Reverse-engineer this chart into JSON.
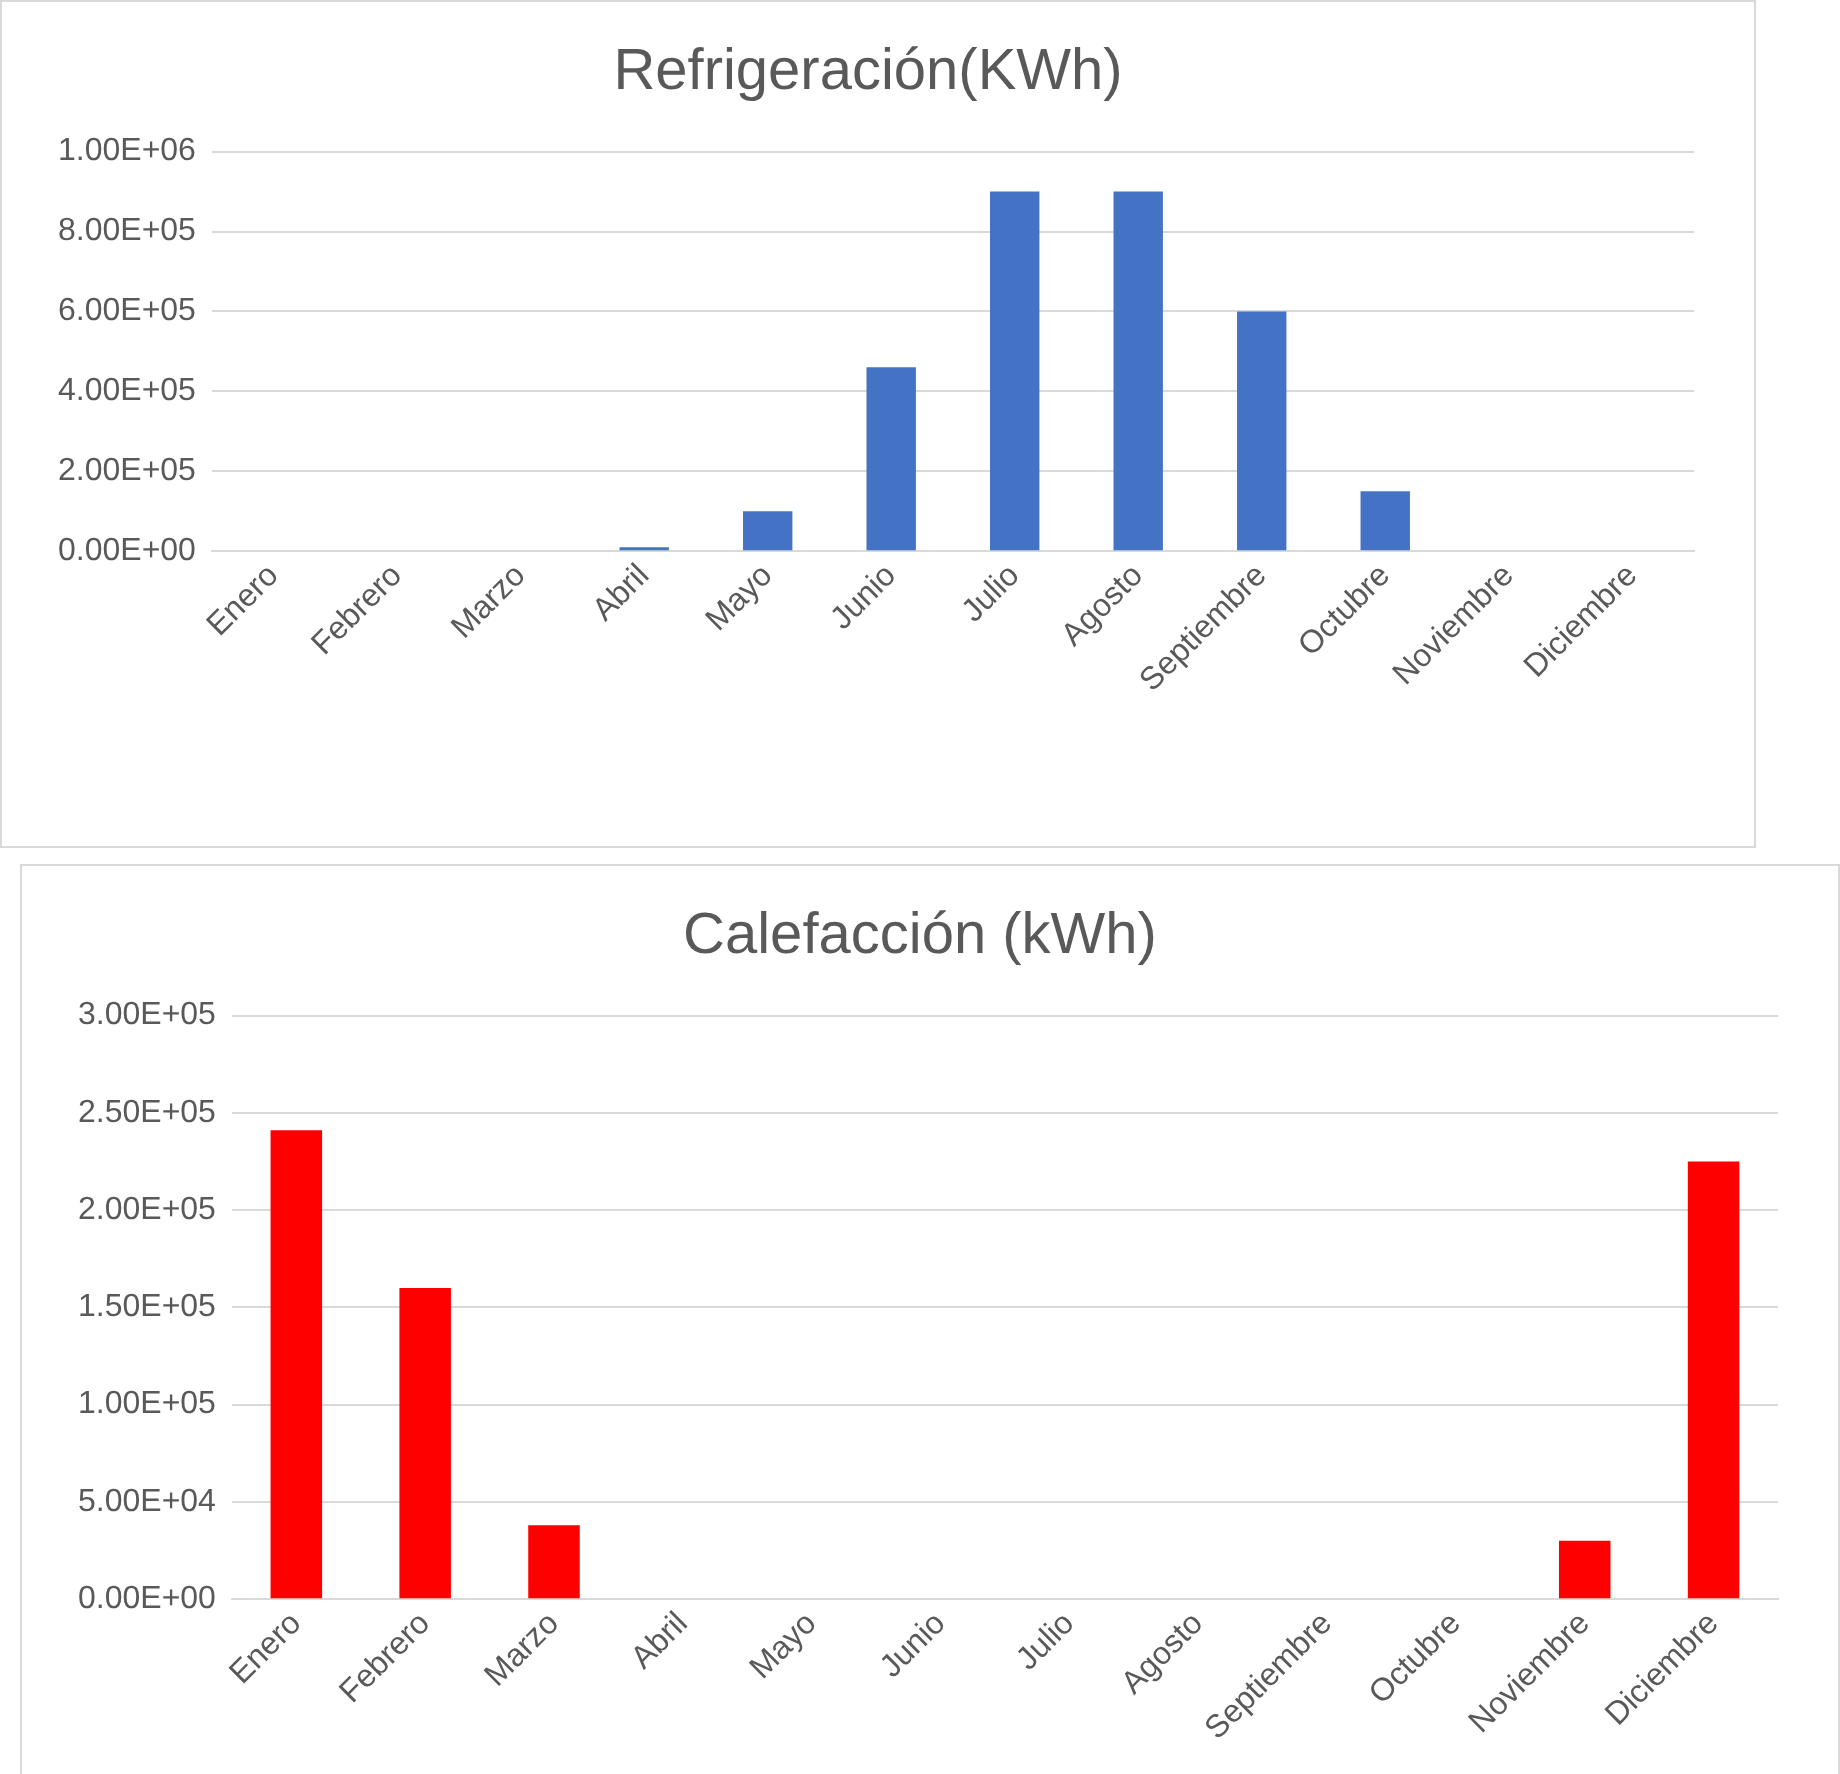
{
  "chart_data": [
    {
      "type": "bar",
      "title": "Refrigeración(KWh)",
      "categories": [
        "Enero",
        "Febrero",
        "Marzo",
        "Abril",
        "Mayo",
        "Junio",
        "Julio",
        "Agosto",
        "Septiembre",
        "Octubre",
        "Noviembre",
        "Diciembre"
      ],
      "values": [
        0,
        0,
        0,
        10000,
        100000,
        460000,
        900000,
        900000,
        600000,
        150000,
        0,
        0
      ],
      "color": "#4472c4",
      "ylim": [
        0,
        1000000
      ],
      "yticks": [
        {
          "value": 0,
          "label": "0.00E+00"
        },
        {
          "value": 200000,
          "label": "2.00E+05"
        },
        {
          "value": 400000,
          "label": "4.00E+05"
        },
        {
          "value": 600000,
          "label": "6.00E+05"
        },
        {
          "value": 800000,
          "label": "8.00E+05"
        },
        {
          "value": 1000000,
          "label": "1.00E+06"
        }
      ],
      "grid": "y"
    },
    {
      "type": "bar",
      "title": "Calefacción (kWh)",
      "categories": [
        "Enero",
        "Febrero",
        "Marzo",
        "Abril",
        "Mayo",
        "Junio",
        "Julio",
        "Agosto",
        "Septiembre",
        "Octubre",
        "Noviembre",
        "Diciembre"
      ],
      "values": [
        241000,
        160000,
        38000,
        0,
        0,
        0,
        0,
        0,
        0,
        0,
        30000,
        225000
      ],
      "color": "#ff0000",
      "ylim": [
        0,
        300000
      ],
      "yticks": [
        {
          "value": 0,
          "label": "0.00E+00"
        },
        {
          "value": 50000,
          "label": "5.00E+04"
        },
        {
          "value": 100000,
          "label": "1.00E+05"
        },
        {
          "value": 150000,
          "label": "1.50E+05"
        },
        {
          "value": 200000,
          "label": "2.00E+05"
        },
        {
          "value": 250000,
          "label": "2.50E+05"
        },
        {
          "value": 300000,
          "label": "3.00E+05"
        }
      ],
      "grid": "y"
    }
  ]
}
